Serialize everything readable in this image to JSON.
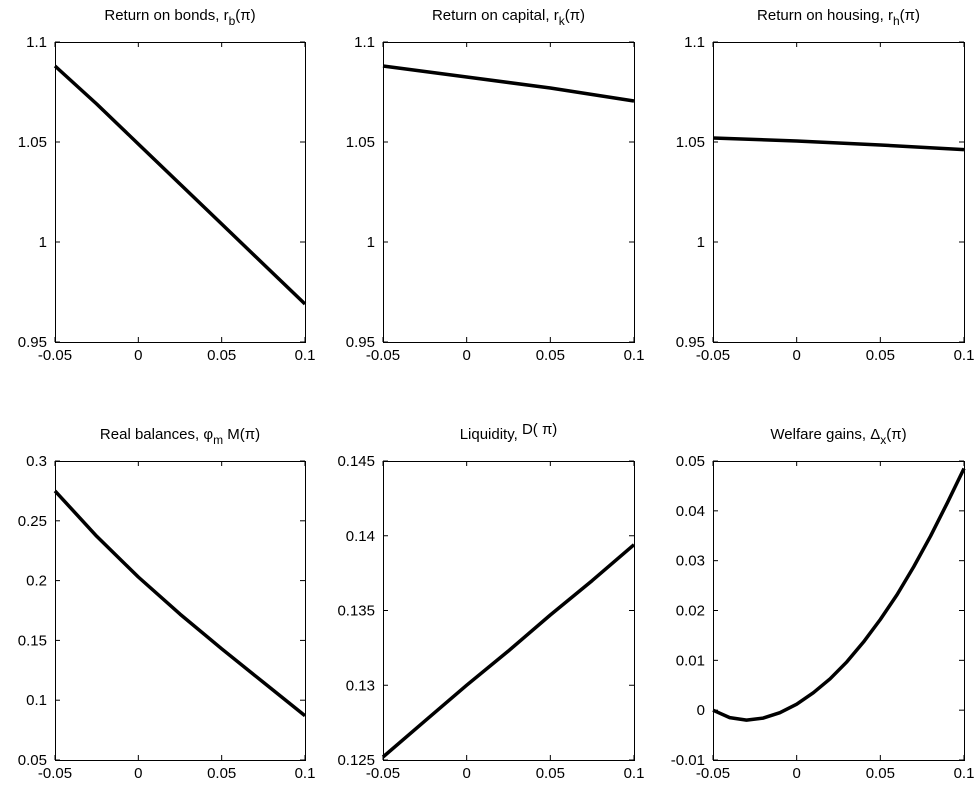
{
  "chart_data": [
    {
      "type": "line",
      "title": {
        "main": "Return on bonds,",
        "symbol": "r",
        "sub": "b",
        "arg": "(π)"
      },
      "xlim": [
        -0.05,
        0.1
      ],
      "ylim": [
        0.95,
        1.1
      ],
      "xticks": [
        -0.05,
        0,
        0.05,
        0.1
      ],
      "xtick_labels": [
        "-0.05",
        "0",
        "0.05",
        "0.1"
      ],
      "yticks": [
        0.95,
        1,
        1.05,
        1.1
      ],
      "ytick_labels": [
        "0.95",
        "1",
        "1.05",
        "1.1"
      ],
      "grid": false,
      "x": [
        -0.05,
        -0.025,
        0,
        0.025,
        0.05,
        0.075,
        0.1
      ],
      "y": [
        1.088,
        1.069,
        1.049,
        1.029,
        1.009,
        0.989,
        0.969
      ]
    },
    {
      "type": "line",
      "title": {
        "main": "Return on capital,",
        "symbol": "r",
        "sub": "k",
        "arg": "(π)"
      },
      "xlim": [
        -0.05,
        0.1
      ],
      "ylim": [
        0.95,
        1.1
      ],
      "xticks": [
        -0.05,
        0,
        0.05,
        0.1
      ],
      "xtick_labels": [
        "-0.05",
        "0",
        "0.05",
        "0.1"
      ],
      "yticks": [
        0.95,
        1,
        1.05,
        1.1
      ],
      "ytick_labels": [
        "0.95",
        "1",
        "1.05",
        "1.1"
      ],
      "grid": false,
      "x": [
        -0.05,
        0,
        0.05,
        0.1
      ],
      "y": [
        1.088,
        1.0825,
        1.077,
        1.0705
      ]
    },
    {
      "type": "line",
      "title": {
        "main": "Return on housing,",
        "symbol": "r",
        "sub": "h",
        "arg": "(π)"
      },
      "xlim": [
        -0.05,
        0.1
      ],
      "ylim": [
        0.95,
        1.1
      ],
      "xticks": [
        -0.05,
        0,
        0.05,
        0.1
      ],
      "xtick_labels": [
        "-0.05",
        "0",
        "0.05",
        "0.1"
      ],
      "yticks": [
        0.95,
        1,
        1.05,
        1.1
      ],
      "ytick_labels": [
        "0.95",
        "1",
        "1.05",
        "1.1"
      ],
      "grid": false,
      "x": [
        -0.05,
        0,
        0.05,
        0.1
      ],
      "y": [
        1.052,
        1.0505,
        1.0485,
        1.0462
      ]
    },
    {
      "type": "line",
      "title": {
        "main": "Real balances,",
        "symbol": "φ",
        "sub": "m",
        "arg": " M(π)"
      },
      "xlim": [
        -0.05,
        0.1
      ],
      "ylim": [
        0.05,
        0.3
      ],
      "xticks": [
        -0.05,
        0,
        0.05,
        0.1
      ],
      "xtick_labels": [
        "-0.05",
        "0",
        "0.05",
        "0.1"
      ],
      "yticks": [
        0.05,
        0.1,
        0.15,
        0.2,
        0.25,
        0.3
      ],
      "ytick_labels": [
        "0.05",
        "0.1",
        "0.15",
        "0.2",
        "0.25",
        "0.3"
      ],
      "grid": false,
      "x": [
        -0.05,
        -0.025,
        0,
        0.025,
        0.05,
        0.075,
        0.1
      ],
      "y": [
        0.275,
        0.237,
        0.203,
        0.172,
        0.143,
        0.115,
        0.087
      ]
    },
    {
      "type": "line",
      "title": {
        "main": "Liquidity,",
        "symbol": "",
        "sub": "",
        "arg": "D(  π)"
      },
      "xlim": [
        -0.05,
        0.1
      ],
      "ylim": [
        0.125,
        0.145
      ],
      "xticks": [
        -0.05,
        0,
        0.05,
        0.1
      ],
      "xtick_labels": [
        "-0.05",
        "0",
        "0.05",
        "0.1"
      ],
      "yticks": [
        0.125,
        0.13,
        0.135,
        0.14,
        0.145
      ],
      "ytick_labels": [
        "0.125",
        "0.13",
        "0.135",
        "0.14",
        "0.145"
      ],
      "grid": false,
      "x": [
        -0.05,
        -0.025,
        0,
        0.025,
        0.05,
        0.075,
        0.1
      ],
      "y": [
        0.1252,
        0.1276,
        0.13,
        0.1323,
        0.1347,
        0.137,
        0.1394
      ]
    },
    {
      "type": "line",
      "title": {
        "main": "Welfare gains,",
        "symbol": "Δ",
        "sub": "x",
        "arg": "(π)"
      },
      "xlim": [
        -0.05,
        0.1
      ],
      "ylim": [
        -0.01,
        0.05
      ],
      "xticks": [
        -0.05,
        0,
        0.05,
        0.1
      ],
      "xtick_labels": [
        "-0.05",
        "0",
        "0.05",
        "0.1"
      ],
      "yticks": [
        -0.01,
        0,
        0.01,
        0.02,
        0.03,
        0.04,
        0.05
      ],
      "ytick_labels": [
        "-0.01",
        "0",
        "0.01",
        "0.02",
        "0.03",
        "0.04",
        "0.05"
      ],
      "grid": false,
      "x": [
        -0.05,
        -0.04,
        -0.03,
        -0.02,
        -0.01,
        0,
        0.01,
        0.02,
        0.03,
        0.04,
        0.05,
        0.06,
        0.07,
        0.08,
        0.09,
        0.1
      ],
      "y": [
        0.0,
        -0.0015,
        -0.002,
        -0.0016,
        -0.0005,
        0.0012,
        0.0035,
        0.0063,
        0.0097,
        0.0137,
        0.0182,
        0.0232,
        0.0288,
        0.0349,
        0.0416,
        0.0485
      ]
    }
  ]
}
